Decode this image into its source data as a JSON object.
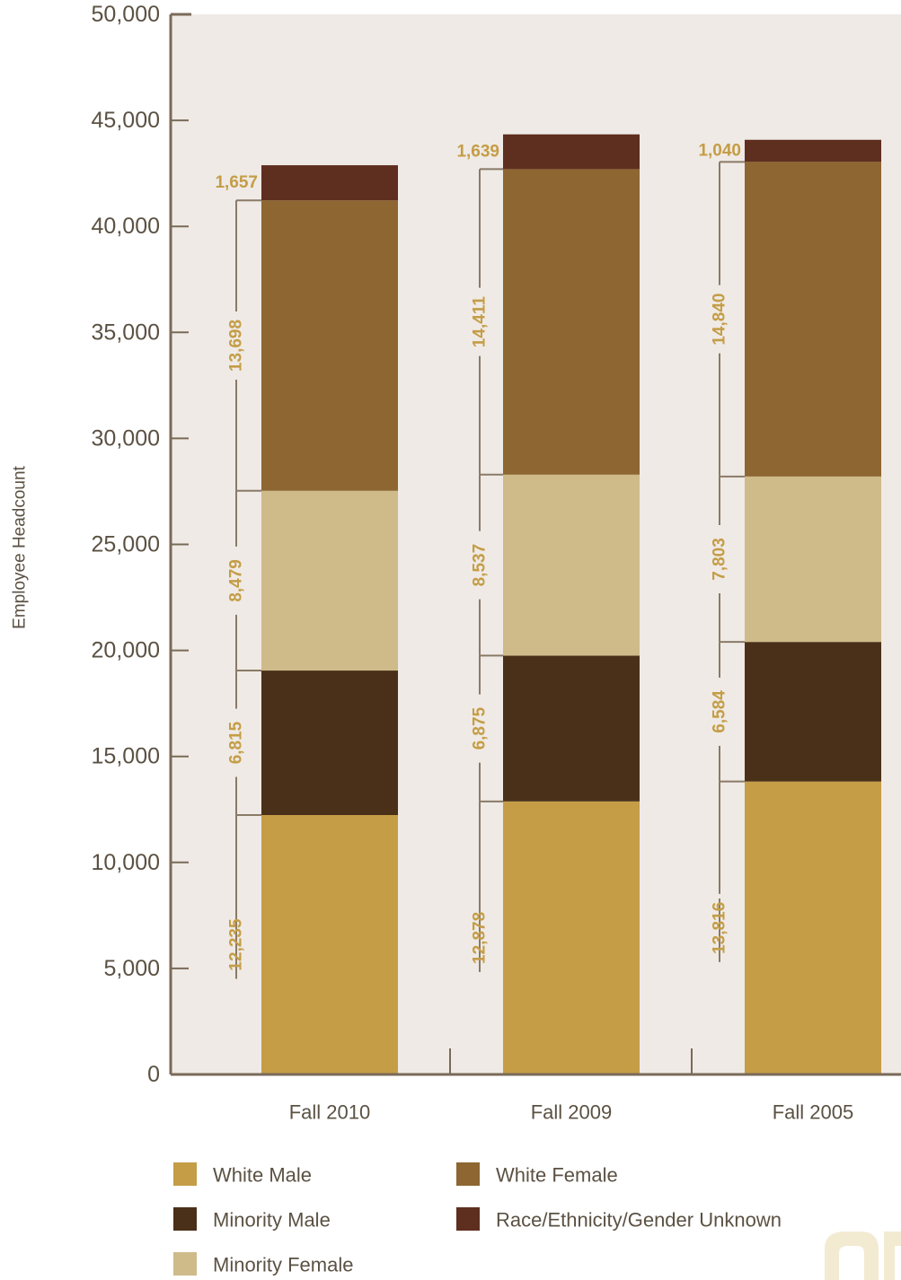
{
  "colors": {
    "plot_background": "#efeae5",
    "axis": "#7a6a58",
    "bracket": "#8a7a67",
    "label_text": "#c49d46",
    "text": "#5b5143",
    "corner_mark": "#f3ead2"
  },
  "chart_data": {
    "type": "bar",
    "stacked": true,
    "categories": [
      "Fall 2010",
      "Fall 2009",
      "Fall 2005"
    ],
    "series": [
      {
        "name": "White Male",
        "color": "#c49d46",
        "values": [
          12235,
          12878,
          13816
        ],
        "labels": [
          "12,235",
          "12,878",
          "13,816"
        ]
      },
      {
        "name": "Minority Male",
        "color": "#4a3018",
        "values": [
          6815,
          6875,
          6584
        ],
        "labels": [
          "6,815",
          "6,875",
          "6,584"
        ]
      },
      {
        "name": "Minority Female",
        "color": "#cfba8a",
        "values": [
          8479,
          8537,
          7803
        ],
        "labels": [
          "8,479",
          "8,537",
          "7,803"
        ]
      },
      {
        "name": "White Female",
        "color": "#8d6631",
        "values": [
          13698,
          14411,
          14840
        ],
        "labels": [
          "13,698",
          "14,411",
          "14,840"
        ]
      },
      {
        "name": "Race/Ethnicity/Gender Unknown",
        "color": "#5e2e1f",
        "values": [
          1657,
          1639,
          1040
        ],
        "labels": [
          "1,657",
          "1,639",
          "1,040"
        ]
      }
    ],
    "ylabel": "Employee Headcount",
    "ylim": [
      0,
      50000
    ],
    "yticks": [
      0,
      5000,
      10000,
      15000,
      20000,
      25000,
      30000,
      35000,
      40000,
      45000,
      50000
    ],
    "ytick_labels": [
      "0",
      "5,000",
      "10,000",
      "15,000",
      "20,000",
      "25,000",
      "30,000",
      "35,000",
      "40,000",
      "45,000",
      "50,000"
    ],
    "grid": false,
    "legend_position": "bottom"
  }
}
